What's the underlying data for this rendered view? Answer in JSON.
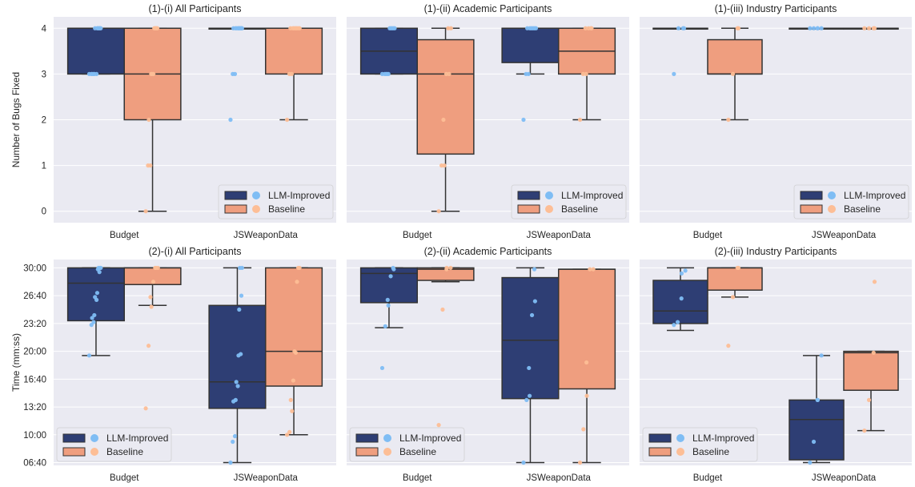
{
  "colors": {
    "panel_bg": "#EAEAF2",
    "grid": "#FFFFFF",
    "llm_box": "#2E3E74",
    "llm_dots": "#7FBDF4",
    "baseline_box": "#EF9E7F",
    "baseline_dots": "#FDBE96",
    "line": "#333333"
  },
  "legend": {
    "llm_label": "LLM-Improved",
    "baseline_label": "Baseline"
  },
  "chart_data": [
    {
      "type": "box",
      "title": "(1)-(i) All Participants",
      "ylabel": "Number of Bugs Fixed",
      "categories": [
        "Budget",
        "JSWeaponData"
      ],
      "ylim": [
        -0.25,
        4.25
      ],
      "yticks": [
        0,
        1,
        2,
        3,
        4
      ],
      "ytick_labels": [
        "0",
        "1",
        "2",
        "3",
        "4"
      ],
      "legend_position": "lower right",
      "series": [
        {
          "name": "LLM-Improved",
          "boxes": [
            {
              "whislo": 3,
              "q1": 3,
              "med": 4,
              "q3": 4,
              "whishi": 4
            },
            {
              "whislo": 4,
              "q1": 4,
              "med": 4,
              "q3": 4,
              "whishi": 4
            }
          ],
          "points": [
            [
              3,
              3,
              3,
              3,
              3,
              3,
              4,
              4,
              4,
              4,
              4,
              4,
              4
            ],
            [
              2,
              3,
              3,
              4,
              4,
              4,
              4,
              4,
              4,
              4,
              4,
              4,
              4
            ]
          ]
        },
        {
          "name": "Baseline",
          "boxes": [
            {
              "whislo": 0,
              "q1": 2,
              "med": 3,
              "q3": 4,
              "whishi": 4
            },
            {
              "whislo": 2,
              "q1": 3,
              "med": 4,
              "q3": 4,
              "whishi": 4
            }
          ],
          "points": [
            [
              0,
              1,
              1,
              2,
              3,
              3,
              3,
              4,
              4,
              4,
              4,
              4
            ],
            [
              2,
              3,
              3,
              4,
              4,
              4,
              4,
              4,
              4,
              4,
              4
            ]
          ]
        }
      ]
    },
    {
      "type": "box",
      "title": "(1)-(ii) Academic Participants",
      "ylabel": "",
      "categories": [
        "Budget",
        "JSWeaponData"
      ],
      "ylim": [
        -0.25,
        4.25
      ],
      "yticks": [
        0,
        1,
        2,
        3,
        4
      ],
      "ytick_labels": [],
      "legend_position": "lower right",
      "series": [
        {
          "name": "LLM-Improved",
          "boxes": [
            {
              "whislo": 3,
              "q1": 3,
              "med": 3.5,
              "q3": 4,
              "whishi": 4
            },
            {
              "whislo": 3,
              "q1": 3.25,
              "med": 4,
              "q3": 4,
              "whishi": 4
            }
          ],
          "points": [
            [
              3,
              3,
              3,
              3,
              3,
              4,
              4,
              4,
              4,
              4
            ],
            [
              2,
              3,
              3,
              4,
              4,
              4,
              4,
              4,
              4,
              4
            ]
          ]
        },
        {
          "name": "Baseline",
          "boxes": [
            {
              "whislo": 0,
              "q1": 1.25,
              "med": 3,
              "q3": 3.75,
              "whishi": 4
            },
            {
              "whislo": 2,
              "q1": 3,
              "med": 3.5,
              "q3": 4,
              "whishi": 4
            }
          ],
          "points": [
            [
              0,
              1,
              1,
              2,
              3,
              3,
              4,
              4
            ],
            [
              2,
              3,
              3,
              4,
              4,
              4,
              4
            ]
          ]
        }
      ]
    },
    {
      "type": "box",
      "title": "(1)-(iii) Industry Participants",
      "ylabel": "",
      "categories": [
        "Budget",
        "JSWeaponData"
      ],
      "ylim": [
        -0.25,
        4.25
      ],
      "yticks": [
        0,
        1,
        2,
        3,
        4
      ],
      "ytick_labels": [],
      "legend_position": "lower right",
      "series": [
        {
          "name": "LLM-Improved",
          "boxes": [
            {
              "whislo": 4,
              "q1": 4,
              "med": 4,
              "q3": 4,
              "whishi": 4
            },
            {
              "whislo": 4,
              "q1": 4,
              "med": 4,
              "q3": 4,
              "whishi": 4
            }
          ],
          "points": [
            [
              3,
              4,
              4,
              4
            ],
            [
              4,
              4,
              4,
              4,
              4
            ]
          ]
        },
        {
          "name": "Baseline",
          "boxes": [
            {
              "whislo": 2,
              "q1": 3,
              "med": 3,
              "q3": 3.75,
              "whishi": 4
            },
            {
              "whislo": 4,
              "q1": 4,
              "med": 4,
              "q3": 4,
              "whishi": 4
            }
          ],
          "points": [
            [
              2,
              3,
              4,
              4
            ],
            [
              4,
              4,
              4,
              4
            ]
          ]
        }
      ]
    },
    {
      "type": "box",
      "title": "(2)-(i) All Participants",
      "ylabel": "Time (mm:ss)",
      "categories": [
        "Budget",
        "JSWeaponData"
      ],
      "ylim": [
        380,
        1860
      ],
      "yticks": [
        400,
        600,
        800,
        1000,
        1200,
        1400,
        1600,
        1800
      ],
      "ytick_labels": [
        "06:40",
        "10:00",
        "13:20",
        "16:40",
        "20:00",
        "23:20",
        "26:40",
        "30:00"
      ],
      "legend_position": "lower left",
      "series": [
        {
          "name": "LLM-Improved",
          "boxes": [
            {
              "whislo": 1170,
              "q1": 1420,
              "med": 1690,
              "q3": 1800,
              "whishi": 1800
            },
            {
              "whislo": 400,
              "q1": 790,
              "med": 980,
              "q3": 1530,
              "whishi": 1800
            }
          ],
          "points": [
            [
              1170,
              1390,
              1410,
              1440,
              1460,
              1570,
              1590,
              1620,
              1770,
              1790,
              1800,
              1800,
              1800
            ],
            [
              400,
              550,
              590,
              840,
              850,
              950,
              980,
              1170,
              1180,
              1500,
              1600,
              1800,
              1800
            ]
          ]
        },
        {
          "name": "Baseline",
          "boxes": [
            {
              "whislo": 1530,
              "q1": 1680,
              "med": 1800,
              "q3": 1800,
              "whishi": 1800
            },
            {
              "whislo": 600,
              "q1": 950,
              "med": 1200,
              "q3": 1800,
              "whishi": 1800
            }
          ],
          "points": [
            [
              790,
              1240,
              1520,
              1590,
              1700,
              1800,
              1800,
              1800
            ],
            [
              600,
              620,
              770,
              850,
              990,
              1190,
              1200,
              1700,
              1800,
              1800
            ]
          ]
        }
      ]
    },
    {
      "type": "box",
      "title": "(2)-(ii) Academic Participants",
      "ylabel": "",
      "categories": [
        "Budget",
        "JSWeaponData"
      ],
      "ylim": [
        380,
        1860
      ],
      "yticks": [
        400,
        600,
        800,
        1000,
        1200,
        1400,
        1600,
        1800
      ],
      "ytick_labels": [],
      "legend_position": "lower left",
      "series": [
        {
          "name": "LLM-Improved",
          "boxes": [
            {
              "whislo": 1370,
              "q1": 1550,
              "med": 1760,
              "q3": 1800,
              "whishi": 1800
            },
            {
              "whislo": 400,
              "q1": 860,
              "med": 1280,
              "q3": 1730,
              "whishi": 1800
            }
          ],
          "points": [
            [
              1080,
              1380,
              1530,
              1570,
              1740,
              1790,
              1800
            ],
            [
              400,
              850,
              880,
              1080,
              1460,
              1560,
              1790
            ]
          ]
        },
        {
          "name": "Baseline",
          "boxes": [
            {
              "whislo": 1700,
              "q1": 1710,
              "med": 1790,
              "q3": 1800,
              "whishi": 1800
            },
            {
              "whislo": 400,
              "q1": 930,
              "med": 1790,
              "q3": 1790,
              "whishi": 1790
            }
          ],
          "points": [
            [
              670,
              1500,
              1790,
              1800,
              1800
            ],
            [
              400,
              640,
              880,
              1120,
              1790,
              1790
            ]
          ]
        }
      ]
    },
    {
      "type": "box",
      "title": "(2)-(iii) Industry Participants",
      "ylabel": "",
      "categories": [
        "Budget",
        "JSWeaponData"
      ],
      "ylim": [
        380,
        1860
      ],
      "yticks": [
        400,
        600,
        800,
        1000,
        1200,
        1400,
        1600,
        1800
      ],
      "ytick_labels": [],
      "legend_position": "lower left",
      "series": [
        {
          "name": "LLM-Improved",
          "boxes": [
            {
              "whislo": 1350,
              "q1": 1400,
              "med": 1490,
              "q3": 1710,
              "whishi": 1800
            },
            {
              "whislo": 400,
              "q1": 420,
              "med": 710,
              "q3": 850,
              "whishi": 1170
            }
          ],
          "points": [
            [
              1390,
              1410,
              1580,
              1760,
              1780
            ],
            [
              400,
              550,
              850,
              850,
              1170
            ]
          ]
        },
        {
          "name": "Baseline",
          "boxes": [
            {
              "whislo": 1590,
              "q1": 1640,
              "med": 1800,
              "q3": 1800,
              "whishi": 1800
            },
            {
              "whislo": 630,
              "q1": 920,
              "med": 1190,
              "q3": 1200,
              "whishi": 1200
            }
          ],
          "points": [
            [
              1240,
              1590,
              1800,
              1800
            ],
            [
              630,
              850,
              1190,
              1700
            ]
          ]
        }
      ]
    }
  ]
}
